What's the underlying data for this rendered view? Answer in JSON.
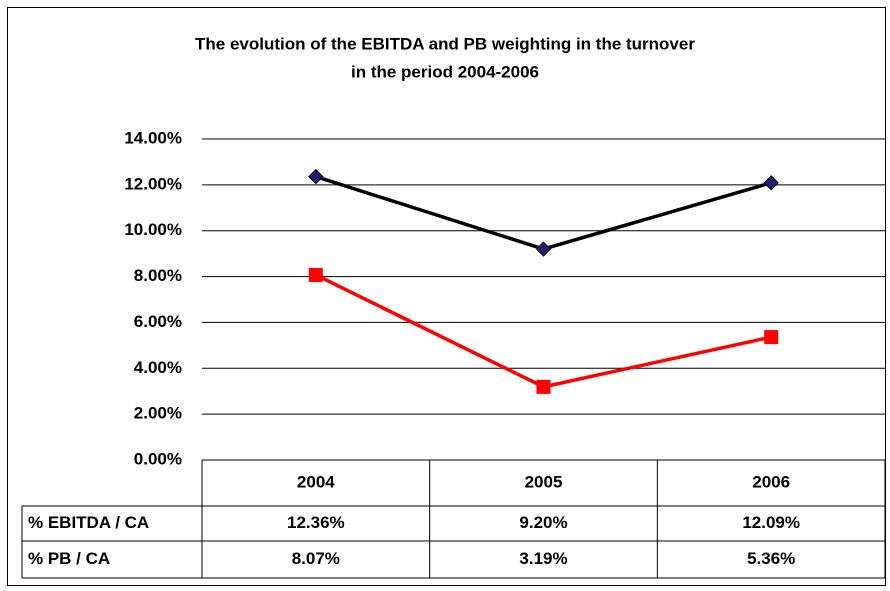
{
  "chart_data": {
    "type": "line",
    "title": [
      "The evolution of the EBITDA and PB weighting in the turnover",
      "in the period 2004-2006"
    ],
    "categories": [
      "2004",
      "2005",
      "2006"
    ],
    "series": [
      {
        "name": "% EBITDA / CA",
        "color": "#000000",
        "marker": "diamond",
        "marker_color": "#1f1f7a",
        "values": [
          12.36,
          9.2,
          12.09
        ],
        "value_labels": [
          "12.36%",
          "9.20%",
          "12.09%"
        ]
      },
      {
        "name": "% PB / CA",
        "color": "#ff0000",
        "marker": "square",
        "marker_color": "#ff0000",
        "values": [
          8.07,
          3.19,
          5.36
        ],
        "value_labels": [
          "8.07%",
          "3.19%",
          "5.36%"
        ]
      }
    ],
    "ylim": [
      0,
      14
    ],
    "yticks": [
      {
        "value": 0,
        "label": "0.00%"
      },
      {
        "value": 2,
        "label": "2.00%"
      },
      {
        "value": 4,
        "label": "4.00%"
      },
      {
        "value": 6,
        "label": "6.00%"
      },
      {
        "value": 8,
        "label": "8.00%"
      },
      {
        "value": 10,
        "label": "10.00%"
      },
      {
        "value": 12,
        "label": "12.00%"
      },
      {
        "value": 14,
        "label": "14.00%"
      }
    ],
    "grid": true,
    "data_table": true
  }
}
